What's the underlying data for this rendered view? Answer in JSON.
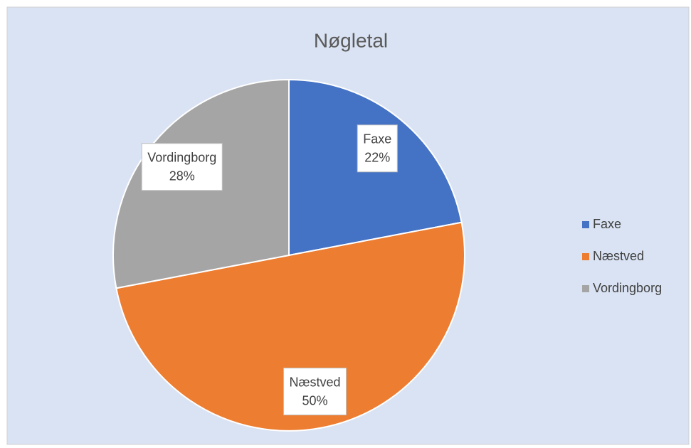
{
  "chart_data": {
    "type": "pie",
    "title": "Nøgletal",
    "categories": [
      "Faxe",
      "Næstved",
      "Vordingborg"
    ],
    "values": [
      22,
      50,
      28
    ],
    "value_labels": [
      "22%",
      "50%",
      "28%"
    ],
    "colors": [
      "#4472c4",
      "#ed7d31",
      "#a5a5a5"
    ],
    "legend": "right"
  }
}
